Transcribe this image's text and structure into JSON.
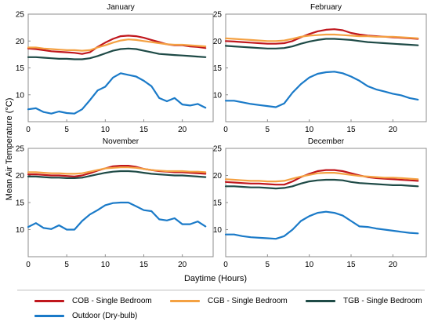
{
  "figure": {
    "ylabel": "Mean Air Temperature (°C)",
    "xlabel": "Daytime (Hours)",
    "legend": [
      {
        "name": "COB - Single Bedroom",
        "color": "#c0171d"
      },
      {
        "name": "CGB - Single Bedroom",
        "color": "#f4a142"
      },
      {
        "name": "TGB - Single Bedroom",
        "color": "#1e4a46"
      },
      {
        "name": "Outdoor (Dry-bulb)",
        "color": "#1a7ac8"
      }
    ]
  },
  "chart_data": [
    {
      "type": "line",
      "title": "January",
      "x": [
        0,
        1,
        2,
        3,
        4,
        5,
        6,
        7,
        8,
        9,
        10,
        11,
        12,
        13,
        14,
        15,
        16,
        17,
        18,
        19,
        20,
        21,
        22,
        23
      ],
      "xlim": [
        0,
        24
      ],
      "ylim": [
        5,
        25
      ],
      "xticks": [
        0,
        5,
        10,
        15,
        20
      ],
      "yticks": [
        10,
        15,
        20,
        25
      ],
      "grid": false,
      "series": [
        {
          "name": "COB - Single Bedroom",
          "color": "#c0171d",
          "values": [
            18.6,
            18.5,
            18.3,
            18.1,
            18.0,
            17.9,
            17.8,
            17.6,
            17.9,
            18.9,
            19.7,
            20.4,
            20.9,
            21.0,
            20.9,
            20.6,
            20.2,
            19.8,
            19.4,
            19.2,
            19.2,
            19.0,
            18.9,
            18.7
          ]
        },
        {
          "name": "CGB - Single Bedroom",
          "color": "#f4a142",
          "values": [
            18.8,
            18.8,
            18.6,
            18.5,
            18.4,
            18.3,
            18.3,
            18.2,
            18.3,
            18.8,
            19.2,
            19.7,
            20.1,
            20.3,
            20.2,
            20.0,
            19.8,
            19.6,
            19.4,
            19.3,
            19.3,
            19.2,
            19.1,
            19.0
          ]
        },
        {
          "name": "TGB - Single Bedroom",
          "color": "#1e4a46",
          "values": [
            17.0,
            17.0,
            16.9,
            16.8,
            16.7,
            16.7,
            16.6,
            16.6,
            16.8,
            17.2,
            17.7,
            18.2,
            18.5,
            18.6,
            18.5,
            18.2,
            17.9,
            17.6,
            17.5,
            17.4,
            17.3,
            17.2,
            17.1,
            17.0
          ]
        },
        {
          "name": "Outdoor (Dry-bulb)",
          "color": "#1a7ac8",
          "values": [
            7.3,
            7.5,
            6.8,
            6.5,
            6.9,
            6.6,
            6.5,
            7.3,
            9.0,
            10.8,
            11.5,
            13.2,
            14.0,
            13.7,
            13.4,
            12.6,
            11.6,
            9.4,
            8.8,
            9.4,
            8.2,
            8.0,
            8.3,
            7.6
          ]
        }
      ]
    },
    {
      "type": "line",
      "title": "February",
      "x": [
        0,
        1,
        2,
        3,
        4,
        5,
        6,
        7,
        8,
        9,
        10,
        11,
        12,
        13,
        14,
        15,
        16,
        17,
        18,
        19,
        20,
        21,
        22,
        23
      ],
      "xlim": [
        0,
        24
      ],
      "ylim": [
        5,
        25
      ],
      "xticks": [
        0,
        5,
        10,
        15,
        20
      ],
      "yticks": [
        10,
        15,
        20,
        25
      ],
      "grid": false,
      "series": [
        {
          "name": "COB - Single Bedroom",
          "color": "#c0171d",
          "values": [
            20.0,
            19.9,
            19.8,
            19.7,
            19.6,
            19.5,
            19.5,
            19.6,
            20.0,
            20.7,
            21.3,
            21.8,
            22.1,
            22.2,
            22.0,
            21.5,
            21.2,
            21.0,
            20.9,
            20.8,
            20.7,
            20.6,
            20.5,
            20.4
          ]
        },
        {
          "name": "CGB - Single Bedroom",
          "color": "#f4a142",
          "values": [
            20.5,
            20.4,
            20.3,
            20.2,
            20.1,
            20.0,
            20.0,
            20.1,
            20.4,
            20.8,
            21.0,
            21.1,
            21.2,
            21.2,
            21.1,
            21.0,
            20.9,
            20.9,
            20.8,
            20.8,
            20.8,
            20.7,
            20.6,
            20.5
          ]
        },
        {
          "name": "TGB - Single Bedroom",
          "color": "#1e4a46",
          "values": [
            19.1,
            19.0,
            18.9,
            18.8,
            18.7,
            18.6,
            18.6,
            18.7,
            19.0,
            19.5,
            19.9,
            20.2,
            20.4,
            20.4,
            20.3,
            20.2,
            20.0,
            19.8,
            19.7,
            19.6,
            19.5,
            19.4,
            19.3,
            19.2
          ]
        },
        {
          "name": "Outdoor (Dry-bulb)",
          "color": "#1a7ac8",
          "values": [
            8.9,
            8.9,
            8.6,
            8.3,
            8.1,
            7.9,
            7.7,
            8.4,
            10.4,
            12.0,
            13.2,
            13.9,
            14.2,
            14.3,
            14.0,
            13.4,
            12.6,
            11.6,
            11.0,
            10.6,
            10.2,
            9.9,
            9.4,
            9.1
          ]
        }
      ]
    },
    {
      "type": "line",
      "title": "November",
      "x": [
        0,
        1,
        2,
        3,
        4,
        5,
        6,
        7,
        8,
        9,
        10,
        11,
        12,
        13,
        14,
        15,
        16,
        17,
        18,
        19,
        20,
        21,
        22,
        23
      ],
      "xlim": [
        0,
        24
      ],
      "ylim": [
        5,
        25
      ],
      "xticks": [
        0,
        5,
        10,
        15,
        20
      ],
      "yticks": [
        10,
        15,
        20,
        25
      ],
      "grid": false,
      "series": [
        {
          "name": "COB - Single Bedroom",
          "color": "#c0171d",
          "values": [
            20.2,
            20.2,
            20.1,
            20.0,
            20.0,
            19.9,
            19.8,
            20.0,
            20.4,
            20.9,
            21.3,
            21.7,
            21.8,
            21.8,
            21.6,
            21.2,
            21.0,
            20.8,
            20.7,
            20.6,
            20.6,
            20.5,
            20.4,
            20.3
          ]
        },
        {
          "name": "CGB - Single Bedroom",
          "color": "#f4a142",
          "values": [
            20.6,
            20.6,
            20.5,
            20.4,
            20.4,
            20.3,
            20.3,
            20.4,
            20.7,
            21.0,
            21.3,
            21.4,
            21.5,
            21.5,
            21.4,
            21.2,
            21.0,
            20.9,
            20.8,
            20.8,
            20.8,
            20.7,
            20.7,
            20.6
          ]
        },
        {
          "name": "TGB - Single Bedroom",
          "color": "#1e4a46",
          "values": [
            19.8,
            19.8,
            19.7,
            19.6,
            19.6,
            19.5,
            19.5,
            19.6,
            19.9,
            20.2,
            20.5,
            20.7,
            20.8,
            20.8,
            20.7,
            20.5,
            20.3,
            20.2,
            20.1,
            20.0,
            20.0,
            19.9,
            19.8,
            19.7
          ]
        },
        {
          "name": "Outdoor (Dry-bulb)",
          "color": "#1a7ac8",
          "values": [
            10.5,
            11.2,
            10.3,
            10.1,
            10.8,
            10.0,
            10.0,
            11.6,
            12.8,
            13.6,
            14.5,
            14.9,
            15.0,
            15.0,
            14.3,
            13.6,
            13.4,
            11.9,
            11.7,
            12.1,
            11.0,
            11.0,
            11.5,
            10.6
          ]
        }
      ]
    },
    {
      "type": "line",
      "title": "December",
      "x": [
        0,
        1,
        2,
        3,
        4,
        5,
        6,
        7,
        8,
        9,
        10,
        11,
        12,
        13,
        14,
        15,
        16,
        17,
        18,
        19,
        20,
        21,
        22,
        23
      ],
      "xlim": [
        0,
        24
      ],
      "ylim": [
        5,
        25
      ],
      "xticks": [
        0,
        5,
        10,
        15,
        20
      ],
      "yticks": [
        10,
        15,
        20,
        25
      ],
      "grid": false,
      "series": [
        {
          "name": "COB - Single Bedroom",
          "color": "#c0171d",
          "values": [
            18.8,
            18.7,
            18.6,
            18.5,
            18.5,
            18.4,
            18.3,
            18.3,
            18.9,
            19.7,
            20.3,
            20.8,
            21.0,
            21.0,
            20.8,
            20.4,
            20.0,
            19.7,
            19.5,
            19.4,
            19.3,
            19.2,
            19.1,
            19.0
          ]
        },
        {
          "name": "CGB - Single Bedroom",
          "color": "#f4a142",
          "values": [
            19.3,
            19.2,
            19.1,
            19.0,
            19.0,
            18.9,
            18.9,
            19.0,
            19.4,
            19.8,
            20.1,
            20.4,
            20.5,
            20.5,
            20.3,
            20.1,
            19.9,
            19.8,
            19.7,
            19.6,
            19.6,
            19.5,
            19.4,
            19.3
          ]
        },
        {
          "name": "TGB - Single Bedroom",
          "color": "#1e4a46",
          "values": [
            18.0,
            18.0,
            17.9,
            17.8,
            17.8,
            17.7,
            17.6,
            17.7,
            18.0,
            18.5,
            18.9,
            19.1,
            19.2,
            19.2,
            19.1,
            18.8,
            18.6,
            18.5,
            18.4,
            18.3,
            18.2,
            18.2,
            18.1,
            18.0
          ]
        },
        {
          "name": "Outdoor (Dry-bulb)",
          "color": "#1a7ac8",
          "values": [
            9.1,
            9.1,
            8.8,
            8.6,
            8.5,
            8.4,
            8.3,
            8.8,
            10.0,
            11.6,
            12.5,
            13.1,
            13.3,
            13.1,
            12.6,
            11.6,
            10.6,
            10.5,
            10.2,
            10.0,
            9.8,
            9.6,
            9.4,
            9.3
          ]
        }
      ]
    }
  ]
}
